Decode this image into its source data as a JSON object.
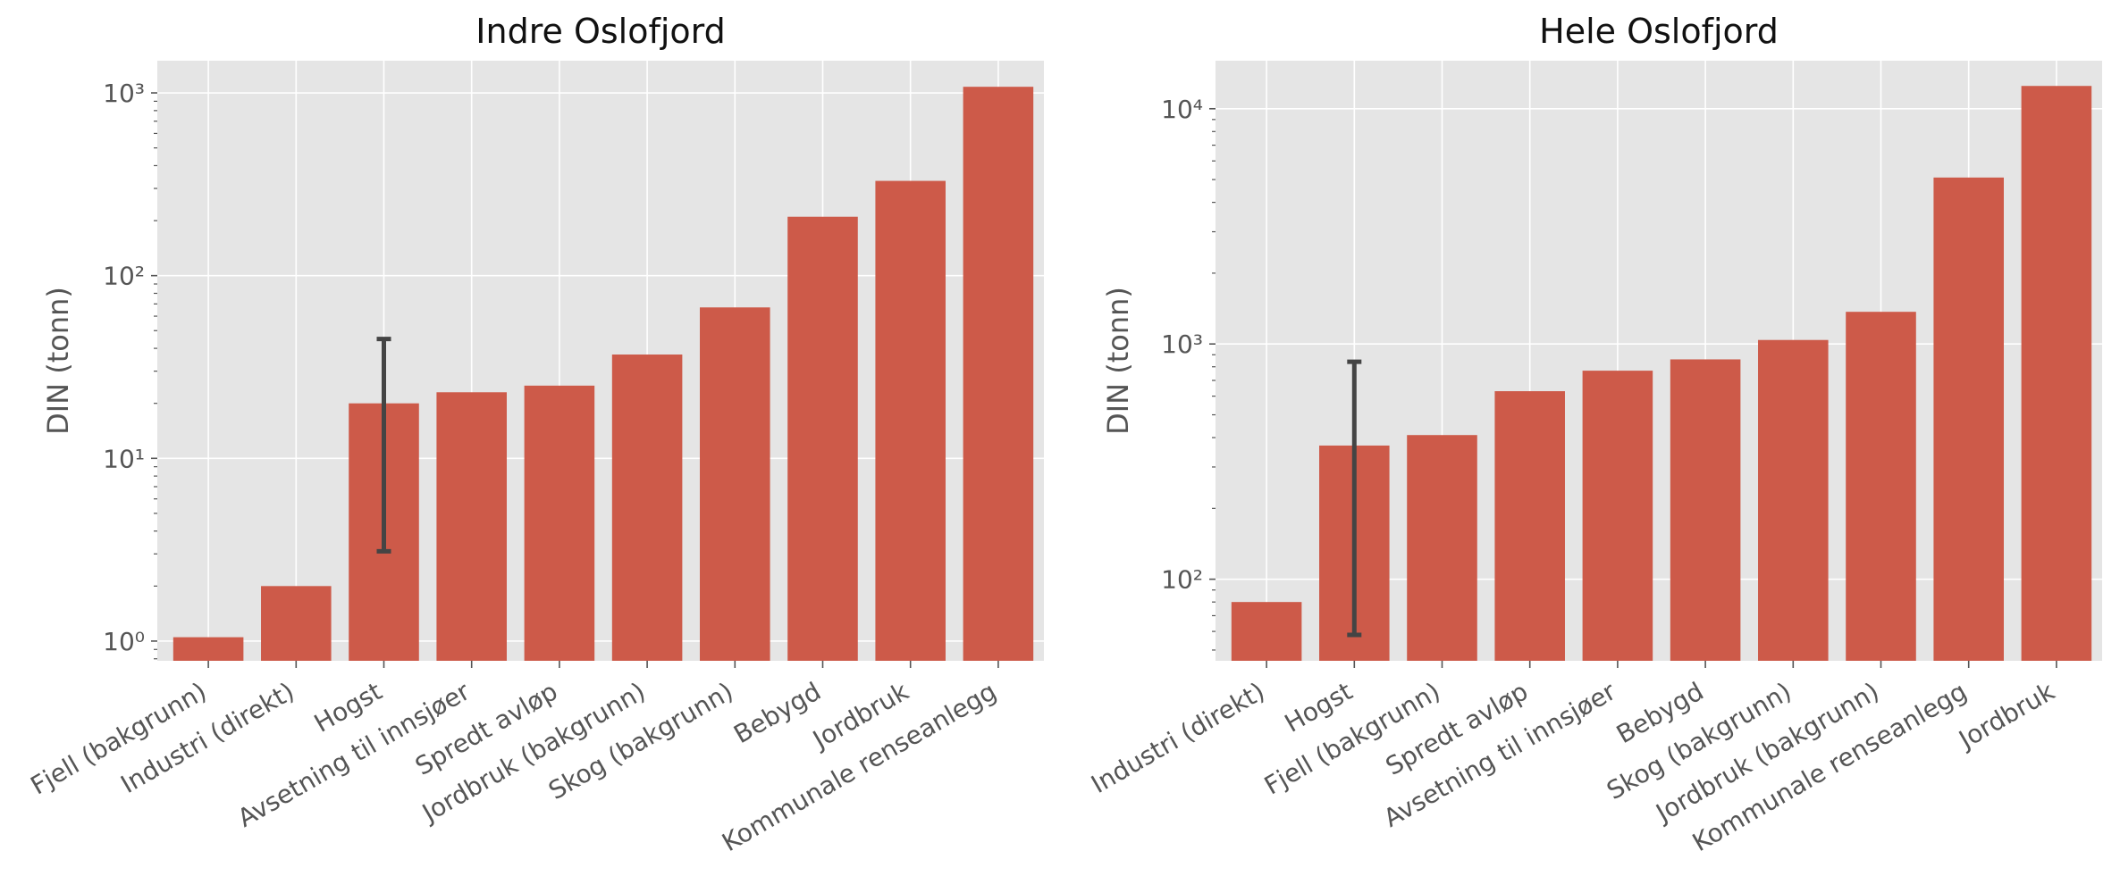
{
  "chart_data": [
    {
      "type": "bar",
      "title": "Indre Oslofjord",
      "xlabel": "",
      "ylabel": "DIN (tonn)",
      "yscale": "log",
      "ylim": [
        0.78,
        1500
      ],
      "yticks": [
        1,
        10,
        100,
        1000
      ],
      "grid": true,
      "categories": [
        "Fjell (bakgrunn)",
        "Industri (direkt)",
        "Hogst",
        "Avsetning til innsjøer",
        "Spredt avløp",
        "Jordbruk (bakgrunn)",
        "Skog (bakgrunn)",
        "Bebygd",
        "Jordbruk",
        "Kommunale renseanlegg"
      ],
      "values": [
        1.05,
        2.0,
        20,
        23,
        25,
        37,
        67,
        210,
        330,
        1080
      ],
      "error_bars": [
        null,
        null,
        [
          3.1,
          45
        ],
        null,
        null,
        null,
        null,
        null,
        null,
        null
      ],
      "bar_color": "#cd5a49"
    },
    {
      "type": "bar",
      "title": "Hele Oslofjord",
      "xlabel": "",
      "ylabel": "DIN (tonn)",
      "yscale": "log",
      "ylim": [
        45,
        16000
      ],
      "yticks": [
        100,
        1000,
        10000
      ],
      "grid": true,
      "categories": [
        "Industri (direkt)",
        "Hogst",
        "Fjell (bakgrunn)",
        "Spredt avløp",
        "Avsetning til innsjøer",
        "Bebygd",
        "Skog (bakgrunn)",
        "Jordbruk (bakgrunn)",
        "Kommunale renseanlegg",
        "Jordbruk"
      ],
      "values": [
        80,
        370,
        410,
        630,
        770,
        860,
        1040,
        1370,
        5100,
        12500
      ],
      "error_bars": [
        null,
        [
          58,
          840
        ],
        null,
        null,
        null,
        null,
        null,
        null,
        null,
        null
      ],
      "bar_color": "#cd5a49"
    }
  ]
}
